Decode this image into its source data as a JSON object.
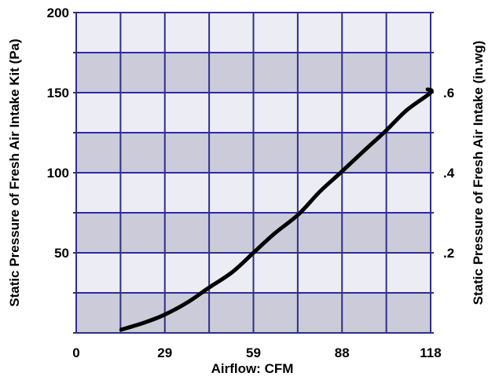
{
  "chart_data": {
    "type": "line",
    "xlabel": "Airflow: CFM",
    "ylabel_left": "Static Pressure of Fresh Air Intake Kit (Pa)",
    "ylabel_right": "Static Pressure of Fresh Air Intake (in.wg)",
    "xlim": [
      0,
      118
    ],
    "ylim_left": [
      0,
      200
    ],
    "ylim_right": [
      0,
      0.8
    ],
    "x_ticks": [
      {
        "value": 0,
        "label": "0"
      },
      {
        "value": 29.5,
        "label": "29"
      },
      {
        "value": 59,
        "label": "59"
      },
      {
        "value": 88.5,
        "label": "88"
      },
      {
        "value": 118,
        "label": "118"
      }
    ],
    "y_ticks_left": [
      {
        "value": 50,
        "label": "50"
      },
      {
        "value": 100,
        "label": "100"
      },
      {
        "value": 150,
        "label": "150"
      },
      {
        "value": 200,
        "label": "200"
      }
    ],
    "y_ticks_right": [
      {
        "value": 0.2,
        "label": ".2"
      },
      {
        "value": 0.4,
        "label": ".4"
      },
      {
        "value": 0.6,
        "label": ".6"
      }
    ],
    "grid": true,
    "x_cells": 8,
    "y_cells": 8,
    "colors": {
      "grid_line": "#2e2e8c",
      "band_light": "#ececf4",
      "band_dark": "#cbcbda",
      "curve": "#000000"
    },
    "series": [
      {
        "x": [
          15,
          22,
          29,
          37,
          44,
          52,
          59,
          66,
          74,
          81,
          88,
          96,
          103,
          110,
          118,
          117
        ],
        "y": [
          2,
          6,
          11,
          19,
          28,
          38,
          50,
          62,
          74,
          88,
          100,
          114,
          126,
          139,
          150,
          152
        ]
      }
    ]
  }
}
